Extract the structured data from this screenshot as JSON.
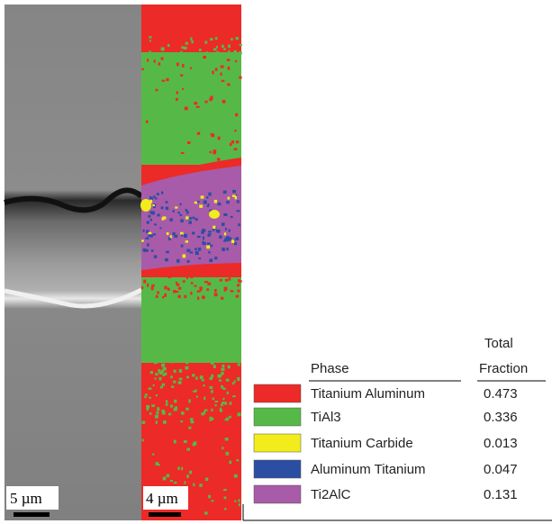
{
  "sem_image": {
    "scale_label": "5 µm"
  },
  "phase_map": {
    "scale_label": "4 µm"
  },
  "legend_table": {
    "headers": {
      "phase": "Phase",
      "fraction_top": "Total",
      "fraction_bottom": "Fraction"
    },
    "rows": [
      {
        "phase": "Titanium Aluminum",
        "fraction": 0.473,
        "color": "#ec2a27"
      },
      {
        "phase": "TiAl3",
        "fraction": 0.336,
        "color": "#56b947"
      },
      {
        "phase": "Titanium Carbide",
        "fraction": 0.013,
        "color": "#f2ec1c"
      },
      {
        "phase": "Aluminum Titanium",
        "fraction": 0.047,
        "color": "#2b4ea3"
      },
      {
        "phase": "Ti2AlC",
        "fraction": 0.131,
        "color": "#a85ba8"
      }
    ]
  }
}
